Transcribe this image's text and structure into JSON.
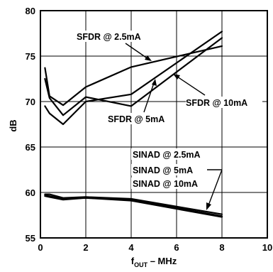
{
  "chart_data": {
    "type": "line",
    "xlabel_main": "f",
    "xlabel_sub": "OUT",
    "xlabel_rest": " – MHz",
    "ylabel": "dB",
    "xlim": [
      0,
      10
    ],
    "ylim": [
      55,
      80
    ],
    "xticks": [
      0,
      2,
      4,
      6,
      8,
      10
    ],
    "yticks": [
      55,
      60,
      65,
      70,
      75,
      80
    ],
    "grid": true,
    "series": [
      {
        "name": "SFDR @ 2.5mA",
        "x": [
          0.2,
          0.4,
          1,
          2,
          4,
          8
        ],
        "y": [
          73.7,
          70.6,
          69.6,
          71.6,
          73.8,
          76.1
        ]
      },
      {
        "name": "SFDR @ 5mA",
        "x": [
          0.2,
          0.4,
          1,
          2,
          4,
          8
        ],
        "y": [
          69.5,
          68.7,
          67.5,
          70.0,
          70.8,
          77.7
        ]
      },
      {
        "name": "SFDR @ 10mA",
        "x": [
          0.2,
          0.4,
          1,
          2,
          4,
          8
        ],
        "y": [
          72.5,
          70.4,
          68.5,
          70.5,
          69.5,
          77.0
        ]
      },
      {
        "name": "SINAD @ 2.5mA",
        "x": [
          0.2,
          0.4,
          1,
          2,
          4,
          8
        ],
        "y": [
          59.8,
          59.8,
          59.4,
          59.5,
          59.3,
          57.6
        ]
      },
      {
        "name": "SINAD @ 5mA",
        "x": [
          0.2,
          0.4,
          1,
          2,
          4,
          8
        ],
        "y": [
          59.7,
          59.6,
          59.3,
          59.4,
          59.2,
          57.4
        ]
      },
      {
        "name": "SINAD @ 10mA",
        "x": [
          0.2,
          0.4,
          1,
          2,
          4,
          8
        ],
        "y": [
          59.6,
          59.5,
          59.2,
          59.4,
          59.1,
          57.3
        ]
      }
    ],
    "annotations": [
      {
        "text": "SFDR @ 2.5mA"
      },
      {
        "text": "SFDR @ 5mA"
      },
      {
        "text": "SFDR @ 10mA"
      },
      {
        "text": "SINAD @ 2.5mA"
      },
      {
        "text": "SINAD @ 5mA"
      },
      {
        "text": "SINAD @ 10mA"
      }
    ]
  }
}
